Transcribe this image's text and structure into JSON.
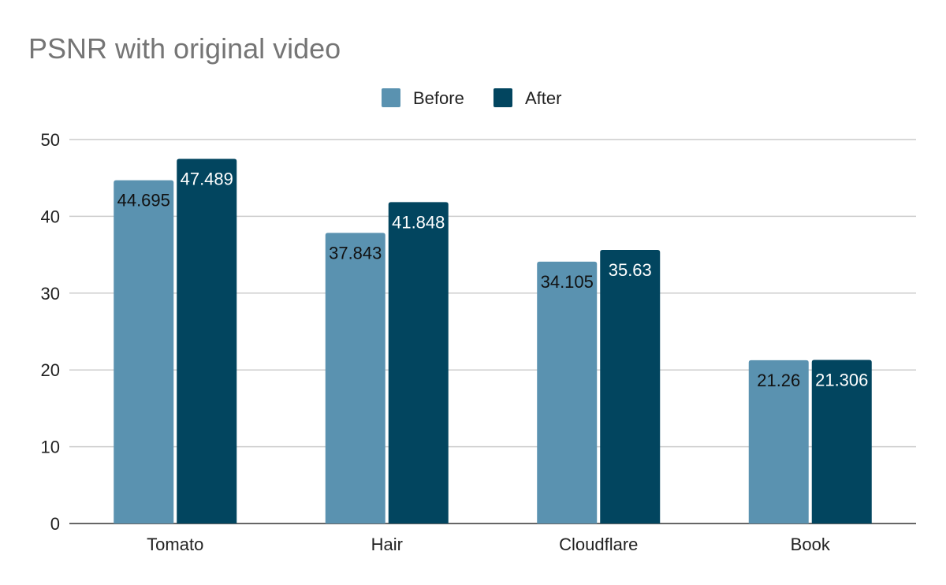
{
  "chart_data": {
    "type": "bar",
    "title": "PSNR with original video",
    "categories": [
      "Tomato",
      "Hair",
      "Cloudflare",
      "Book"
    ],
    "series": [
      {
        "name": "Before",
        "values": [
          44.695,
          37.843,
          34.105,
          21.26
        ],
        "labels": [
          "44.695",
          "37.843",
          "34.105",
          "21.26"
        ],
        "color": "#5a92b0",
        "label_color": "#111111"
      },
      {
        "name": "After",
        "values": [
          47.489,
          41.848,
          35.63,
          21.306
        ],
        "labels": [
          "47.489",
          "41.848",
          "35.63",
          "21.306"
        ],
        "color": "#02455f",
        "label_color": "#ffffff"
      }
    ],
    "xlabel": "",
    "ylabel": "",
    "ylim": [
      0,
      50
    ],
    "yticks": [
      "0",
      "10",
      "20",
      "30",
      "40",
      "50"
    ],
    "grid": true,
    "legend": "top"
  }
}
